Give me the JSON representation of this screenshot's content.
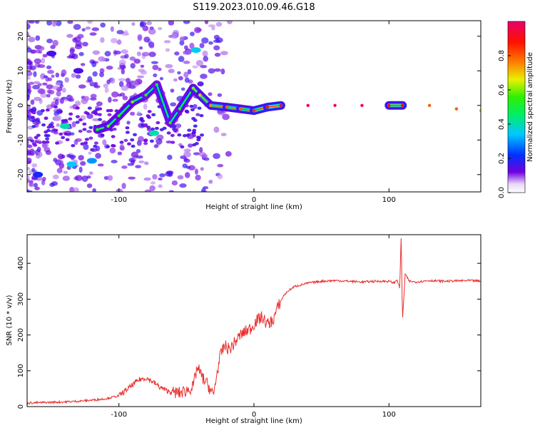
{
  "figure_title": "S119.2023.010.09.46.G18",
  "chart_data": [
    {
      "type": "heatmap",
      "xlabel": "Height of straight line (km)",
      "ylabel": "Frequency (Hz)",
      "xlim": [
        -168,
        168
      ],
      "ylim": [
        -25,
        24.5
      ],
      "xticks": [
        -100,
        0,
        100
      ],
      "yticks": [
        -20,
        -10,
        0,
        10,
        20
      ],
      "colorbar": {
        "label": "Normalized spectral amplitude",
        "range": [
          0,
          1
        ],
        "ticks": [
          0.0,
          0.2,
          0.4,
          0.6,
          0.8
        ],
        "tick_labels": [
          "0.0",
          "0.2",
          "0.4",
          "0.6",
          "0.8"
        ],
        "colormap": [
          "#f0e6f8",
          "#6a00e6",
          "#0040ff",
          "#00d8ff",
          "#00f000",
          "#f0f000",
          "#ff6000",
          "#ff0000",
          "#e00060"
        ]
      },
      "ridge": [
        {
          "x": -116,
          "y": -7,
          "a": 0.55
        },
        {
          "x": -108,
          "y": -6,
          "a": 0.6
        },
        {
          "x": -100,
          "y": -3,
          "a": 0.55
        },
        {
          "x": -90,
          "y": 1,
          "a": 0.6
        },
        {
          "x": -80,
          "y": 3,
          "a": 0.55
        },
        {
          "x": -72,
          "y": 6,
          "a": 0.5
        },
        {
          "x": -62,
          "y": -5,
          "a": 0.55
        },
        {
          "x": -55,
          "y": -1,
          "a": 0.5
        },
        {
          "x": -45,
          "y": 5,
          "a": 0.6
        },
        {
          "x": -40,
          "y": 3,
          "a": 0.7
        },
        {
          "x": -32,
          "y": 0,
          "a": 0.75
        },
        {
          "x": -20,
          "y": -0.5,
          "a": 0.8
        },
        {
          "x": -10,
          "y": -1,
          "a": 0.8
        },
        {
          "x": 0,
          "y": -1.5,
          "a": 0.85
        },
        {
          "x": 10,
          "y": -0.5,
          "a": 0.9
        },
        {
          "x": 20,
          "y": 0,
          "a": 0.95
        },
        {
          "x": 40,
          "y": 0,
          "a": 0.95
        },
        {
          "x": 60,
          "y": 0,
          "a": 0.95
        },
        {
          "x": 80,
          "y": 0,
          "a": 0.95
        },
        {
          "x": 100,
          "y": 0,
          "a": 0.9
        },
        {
          "x": 110,
          "y": 0,
          "a": 0.9
        },
        {
          "x": 130,
          "y": 0,
          "a": 0.8
        },
        {
          "x": 150,
          "y": -1,
          "a": 0.8
        },
        {
          "x": 168,
          "y": -1.5,
          "a": 0.7
        }
      ],
      "blobs": [
        {
          "x": -140,
          "y": -6,
          "a": 0.4
        },
        {
          "x": -135,
          "y": -17,
          "a": 0.35
        },
        {
          "x": -120,
          "y": -16,
          "a": 0.3
        },
        {
          "x": -150,
          "y": 15,
          "a": 0.15
        },
        {
          "x": -130,
          "y": 10,
          "a": 0.15
        },
        {
          "x": -160,
          "y": -20,
          "a": 0.2
        },
        {
          "x": -74,
          "y": -8,
          "a": 0.4
        },
        {
          "x": -43,
          "y": 16,
          "a": 0.35
        }
      ]
    },
    {
      "type": "line",
      "xlabel": "Height of straight line (km)",
      "ylabel": "SNR (10 * v/v)",
      "xlim": [
        -168,
        168
      ],
      "ylim": [
        0,
        480
      ],
      "xticks": [
        -100,
        0,
        100
      ],
      "yticks": [
        0,
        100,
        200,
        300,
        400
      ],
      "line_color": "#e8302e",
      "x": [
        -168,
        -150,
        -140,
        -130,
        -120,
        -110,
        -100,
        -95,
        -90,
        -85,
        -80,
        -75,
        -70,
        -65,
        -60,
        -55,
        -50,
        -45,
        -42,
        -38,
        -34,
        -30,
        -28,
        -25,
        -22,
        -18,
        -14,
        -10,
        -6,
        -2,
        2,
        6,
        10,
        14,
        18,
        22,
        26,
        30,
        40,
        50,
        60,
        70,
        80,
        90,
        100,
        104,
        106,
        108,
        109,
        110,
        112,
        115,
        120,
        130,
        140,
        150,
        160,
        168
      ],
      "values": [
        10,
        12,
        13,
        15,
        18,
        22,
        30,
        45,
        60,
        75,
        80,
        70,
        55,
        45,
        40,
        38,
        45,
        55,
        110,
        80,
        60,
        30,
        80,
        140,
        170,
        160,
        180,
        200,
        210,
        220,
        240,
        250,
        230,
        240,
        280,
        310,
        325,
        335,
        345,
        350,
        352,
        350,
        348,
        350,
        350,
        345,
        355,
        330,
        475,
        240,
        370,
        350,
        348,
        352,
        350,
        351,
        352,
        350
      ]
    }
  ]
}
